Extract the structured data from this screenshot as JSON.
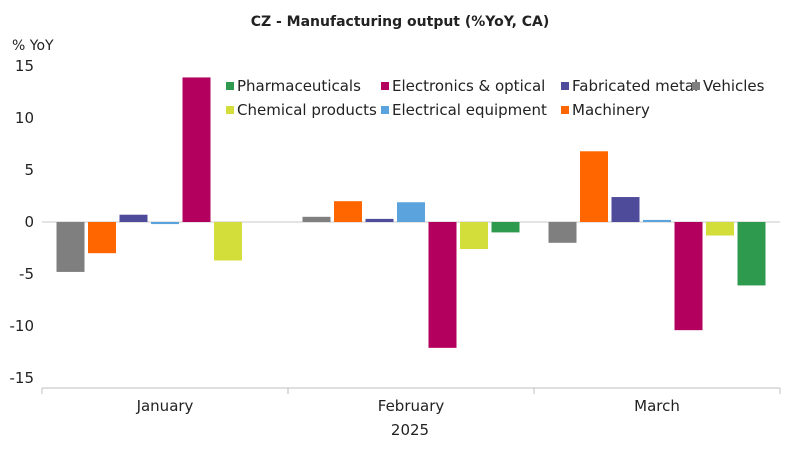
{
  "chart_data": {
    "type": "bar",
    "title": "CZ - Manufacturing output (%YoY, CA)",
    "ylabel": "% YoY",
    "xlabel": "2025",
    "ylim": [
      -15,
      15
    ],
    "yticks": [
      15,
      10,
      5,
      0,
      -5,
      -10,
      -15
    ],
    "categories": [
      "January",
      "February",
      "March"
    ],
    "legend_position": "top-right",
    "series": [
      {
        "name": "Vehicles",
        "color": "#7f7f7f",
        "values": [
          -4.8,
          0.5,
          -2.0
        ]
      },
      {
        "name": "Machinery",
        "color": "#ff6600",
        "values": [
          -3.0,
          2.0,
          6.8
        ]
      },
      {
        "name": "Fabricated metal",
        "color": "#4f4b9b",
        "values": [
          0.7,
          0.3,
          2.4
        ]
      },
      {
        "name": "Electrical equipment",
        "color": "#5ba3dc",
        "values": [
          -0.2,
          1.9,
          0.2
        ]
      },
      {
        "name": "Electronics & optical",
        "color": "#b3005e",
        "values": [
          13.9,
          -12.1,
          -10.4
        ]
      },
      {
        "name": "Chemical products",
        "color": "#d4de3a",
        "values": [
          -3.7,
          -2.6,
          -1.3
        ]
      },
      {
        "name": "Pharmaceuticals",
        "color": "#2e9a4e",
        "values": [
          null,
          -1.0,
          -6.1
        ]
      }
    ],
    "legend_order": [
      [
        "Pharmaceuticals",
        "Electronics & optical",
        "Fabricated metal",
        "Vehicles"
      ],
      [
        "Chemical products",
        "Electrical equipment",
        "Machinery"
      ]
    ]
  }
}
